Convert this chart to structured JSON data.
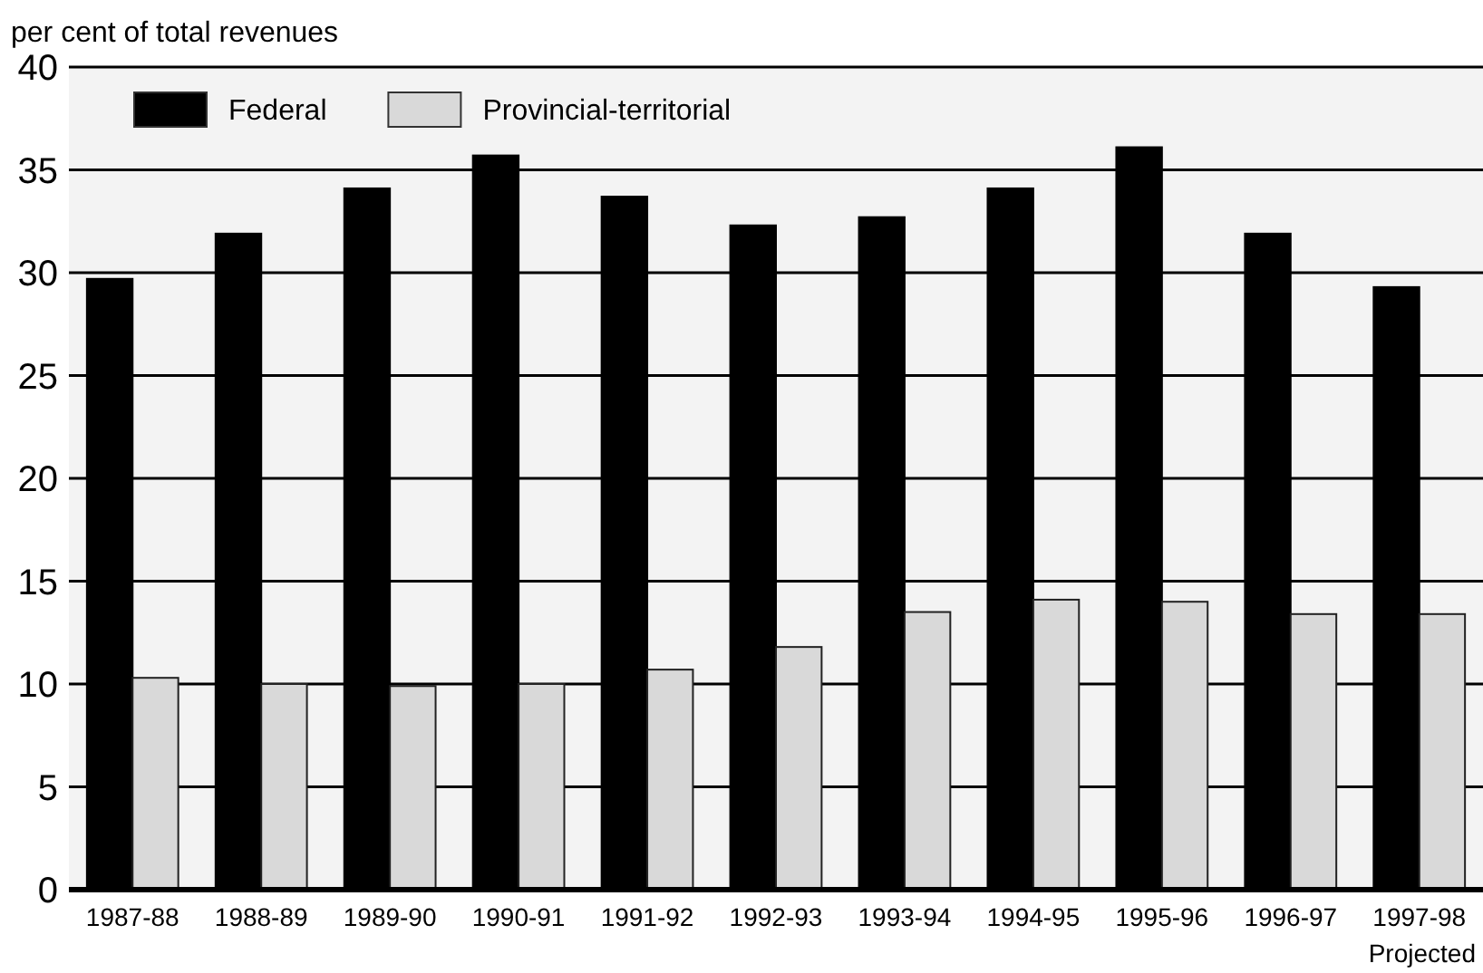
{
  "chart_data": {
    "type": "bar",
    "ylabel": "per cent of total revenues",
    "categories": [
      "1987-88",
      "1988-89",
      "1989-90",
      "1990-91",
      "1991-92",
      "1992-93",
      "1993-94",
      "1994-95",
      "1995-96",
      "1996-97",
      "1997-98"
    ],
    "series": [
      {
        "name": "Federal",
        "color": "#000000",
        "values": [
          29.7,
          31.9,
          34.1,
          35.7,
          33.7,
          32.3,
          32.7,
          34.1,
          36.1,
          31.9,
          29.3
        ]
      },
      {
        "name": "Provincial-territorial",
        "color": "#d9d9d9",
        "values": [
          10.3,
          10.0,
          9.9,
          10.0,
          10.7,
          11.8,
          13.5,
          14.1,
          14.0,
          13.4,
          13.4
        ]
      }
    ],
    "ylim": [
      0,
      40
    ],
    "yticks": [
      0,
      5,
      10,
      15,
      20,
      25,
      30,
      35,
      40
    ],
    "grid": "y",
    "legend": "top left",
    "annotations": [
      "Projected"
    ]
  }
}
